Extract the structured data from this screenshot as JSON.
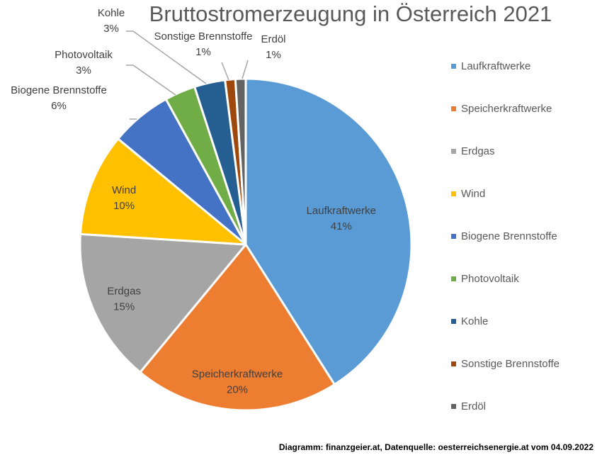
{
  "chart_data": {
    "type": "pie",
    "title": "Bruttostromerzeugung in Österreich 2021",
    "slices": [
      {
        "label": "Laufkraftwerke",
        "value": 41,
        "value_label": "41%",
        "color": "#5B9BD5"
      },
      {
        "label": "Speicherkraftwerke",
        "value": 20,
        "value_label": "20%",
        "color": "#ED7D31"
      },
      {
        "label": "Erdgas",
        "value": 15,
        "value_label": "15%",
        "color": "#A5A5A5"
      },
      {
        "label": "Wind",
        "value": 10,
        "value_label": "10%",
        "color": "#FFC000"
      },
      {
        "label": "Biogene Brennstoffe",
        "value": 6,
        "value_label": "6%",
        "color": "#4472C4"
      },
      {
        "label": "Photovoltaik",
        "value": 3,
        "value_label": "3%",
        "color": "#70AD47"
      },
      {
        "label": "Kohle",
        "value": 3,
        "value_label": "3%",
        "color": "#255E91"
      },
      {
        "label": "Sonstige Brennstoffe",
        "value": 1,
        "value_label": "1%",
        "color": "#9E480E"
      },
      {
        "label": "Erdöl",
        "value": 1,
        "value_label": "1%",
        "color": "#636363"
      }
    ],
    "legend_position": "right"
  },
  "credit": "Diagramm: finanzgeier.at, Datenquelle: oesterreichsenergie.at vom 04.09.2022"
}
